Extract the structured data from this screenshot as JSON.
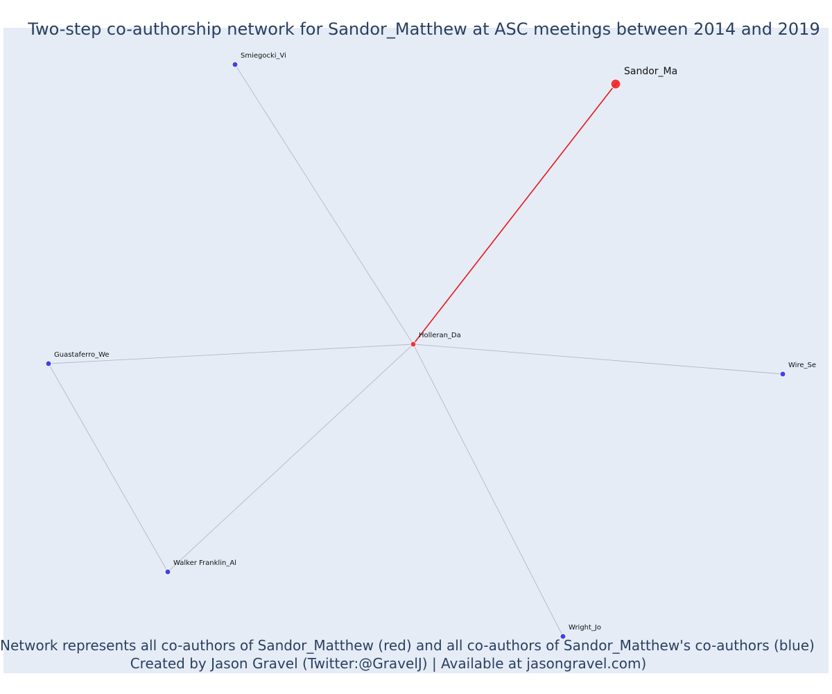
{
  "title": "Two-step co-authorship network for Sandor_Matthew at ASC meetings between 2014 and 2019",
  "caption": {
    "line1": "Network represents all co-authors of Sandor_Matthew (red) and all co-authors of Sandor_Matthew's co-authors (blue)",
    "line2": "Created by Jason Gravel (Twitter:@GravelJ) | Available at jasongravel.com)"
  },
  "colors": {
    "background": "#e5ecf6",
    "ego": "#f0383c",
    "first_step": "#f0383c",
    "second_step": "#4142ea",
    "ego_edge": "#e8141b",
    "edge": "#b4b8c8",
    "text": "#2a3f5f"
  },
  "nodes": [
    {
      "id": "Sandor_Ma",
      "label": "Sandor_Ma",
      "group": "ego"
    },
    {
      "id": "Holleran_Da",
      "label": "Holleran_Da",
      "group": "first_step"
    },
    {
      "id": "Smiegocki_Vi",
      "label": "Smiegocki_Vi",
      "group": "second_step"
    },
    {
      "id": "Guastaferro_We",
      "label": "Guastaferro_We",
      "group": "second_step"
    },
    {
      "id": "Wire_Se",
      "label": "Wire_Se",
      "group": "second_step"
    },
    {
      "id": "Walker Franklin_Al",
      "label": "Walker Franklin_Al",
      "group": "second_step"
    },
    {
      "id": "Wright_Jo",
      "label": "Wright_Jo",
      "group": "second_step"
    }
  ],
  "edges": [
    {
      "source": "Sandor_Ma",
      "target": "Holleran_Da",
      "type": "ego"
    },
    {
      "source": "Holleran_Da",
      "target": "Smiegocki_Vi",
      "type": "coauthor"
    },
    {
      "source": "Holleran_Da",
      "target": "Guastaferro_We",
      "type": "coauthor"
    },
    {
      "source": "Holleran_Da",
      "target": "Wire_Se",
      "type": "coauthor"
    },
    {
      "source": "Holleran_Da",
      "target": "Walker Franklin_Al",
      "type": "coauthor"
    },
    {
      "source": "Holleran_Da",
      "target": "Wright_Jo",
      "type": "coauthor"
    },
    {
      "source": "Guastaferro_We",
      "target": "Walker Franklin_Al",
      "type": "coauthor"
    }
  ]
}
